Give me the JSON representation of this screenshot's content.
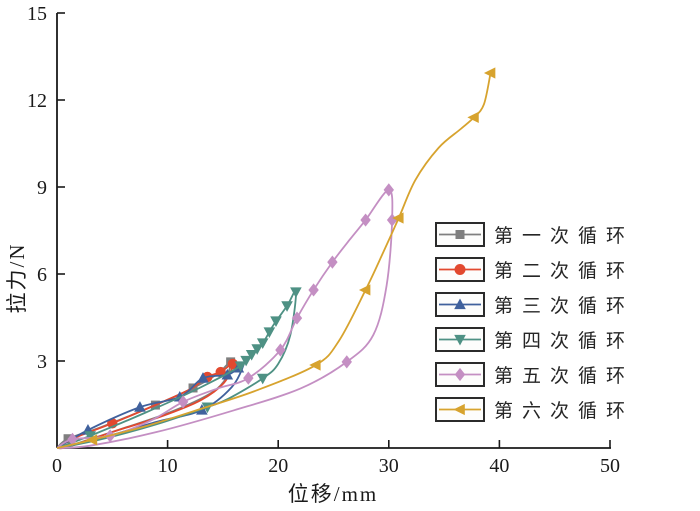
{
  "figure": {
    "background": "#ffffff",
    "text_color": "#1a1a1a"
  },
  "chart_data": {
    "type": "line",
    "title": "",
    "xlabel": "位移/mm",
    "ylabel": "拉力/N",
    "xlim": [
      0,
      50
    ],
    "ylim": [
      0,
      15
    ],
    "xticks": [
      0,
      10,
      20,
      30,
      40,
      50
    ],
    "yticks": [
      3,
      6,
      9,
      12,
      15
    ],
    "grid": false,
    "legend_position": "right-middle",
    "series": [
      {
        "name": "第一次循环",
        "color": "#7f7f7f",
        "marker": "square",
        "points": [
          [
            0,
            0
          ],
          [
            1,
            0.32
          ],
          [
            4,
            0.72
          ],
          [
            8.9,
            1.48
          ],
          [
            12.3,
            2.07
          ],
          [
            14.5,
            2.55
          ],
          [
            15.7,
            2.97
          ],
          [
            15.1,
            2.3
          ],
          [
            13.5,
            1.8
          ],
          [
            10,
            1.2
          ],
          [
            6,
            0.68
          ],
          [
            2,
            0.18
          ],
          [
            0.2,
            0
          ]
        ],
        "marker_points": [
          [
            1,
            0.32
          ],
          [
            8.9,
            1.48
          ],
          [
            12.3,
            2.07
          ],
          [
            15.7,
            2.97
          ]
        ]
      },
      {
        "name": "第二次循环",
        "color": "#e2492f",
        "marker": "circle",
        "points": [
          [
            0,
            0
          ],
          [
            1.8,
            0.38
          ],
          [
            5,
            0.85
          ],
          [
            9,
            1.5
          ],
          [
            12,
            2.02
          ],
          [
            13.6,
            2.45
          ],
          [
            14.8,
            2.62
          ],
          [
            15.9,
            2.9
          ],
          [
            15.1,
            2.25
          ],
          [
            13,
            1.65
          ],
          [
            9.5,
            1.1
          ],
          [
            5,
            0.55
          ],
          [
            1,
            0.04
          ],
          [
            0,
            0
          ]
        ],
        "marker_points": [
          [
            5,
            0.85
          ],
          [
            13.6,
            2.45
          ],
          [
            14.8,
            2.62
          ],
          [
            15.9,
            2.9
          ]
        ]
      },
      {
        "name": "第三次循环",
        "color": "#40619d",
        "marker": "triangle-up",
        "points": [
          [
            0,
            0
          ],
          [
            2.8,
            0.62
          ],
          [
            7.5,
            1.41
          ],
          [
            11.1,
            1.76
          ],
          [
            13.2,
            2.41
          ],
          [
            15.4,
            2.52
          ],
          [
            16.4,
            2.76
          ],
          [
            16.9,
            2.9
          ],
          [
            15.8,
            2.1
          ],
          [
            13.1,
            1.31
          ],
          [
            9,
            0.9
          ],
          [
            4.5,
            0.4
          ],
          [
            0.3,
            0
          ]
        ],
        "marker_points": [
          [
            2.8,
            0.62
          ],
          [
            7.5,
            1.41
          ],
          [
            11.1,
            1.76
          ],
          [
            13.2,
            2.41
          ],
          [
            15.4,
            2.52
          ],
          [
            16.4,
            2.76
          ],
          [
            13.1,
            1.31
          ]
        ]
      },
      {
        "name": "第四次循环",
        "color": "#4e9184",
        "marker": "triangle-down",
        "points": [
          [
            0,
            0
          ],
          [
            3,
            0.42
          ],
          [
            8,
            1.22
          ],
          [
            12.5,
            2.0
          ],
          [
            16.6,
            2.83
          ],
          [
            17.5,
            3.2
          ],
          [
            18.6,
            3.62
          ],
          [
            19.5,
            4.2
          ],
          [
            20.8,
            4.9
          ],
          [
            21.6,
            5.38
          ],
          [
            21.1,
            3.9
          ],
          [
            20,
            2.9
          ],
          [
            18.6,
            2.4
          ],
          [
            15.5,
            1.7
          ],
          [
            13.6,
            1.41
          ],
          [
            9,
            0.82
          ],
          [
            4,
            0.3
          ],
          [
            0.2,
            0
          ]
        ],
        "marker_points": [
          [
            3,
            0.42
          ],
          [
            16.6,
            2.83
          ],
          [
            17.1,
            3.02
          ],
          [
            17.6,
            3.22
          ],
          [
            18.1,
            3.42
          ],
          [
            18.6,
            3.62
          ],
          [
            19.2,
            4.0
          ],
          [
            19.8,
            4.38
          ],
          [
            20.8,
            4.9
          ],
          [
            21.6,
            5.38
          ],
          [
            18.6,
            2.4
          ],
          [
            13.6,
            1.41
          ]
        ]
      },
      {
        "name": "第五次循环",
        "color": "#c48fc3",
        "marker": "diamond",
        "points": [
          [
            0,
            0
          ],
          [
            1.4,
            0.3
          ],
          [
            4.8,
            0.42
          ],
          [
            8.5,
            0.95
          ],
          [
            11.4,
            1.59
          ],
          [
            14.5,
            2.05
          ],
          [
            17.3,
            2.41
          ],
          [
            20.2,
            3.38
          ],
          [
            21.7,
            4.48
          ],
          [
            23.2,
            5.45
          ],
          [
            24.9,
            6.41
          ],
          [
            26.5,
            7.2
          ],
          [
            27.9,
            7.86
          ],
          [
            30.0,
            8.9
          ],
          [
            30.3,
            7.86
          ],
          [
            29.8,
            5.6
          ],
          [
            28.6,
            3.9
          ],
          [
            26.2,
            2.97
          ],
          [
            22,
            2.05
          ],
          [
            16,
            1.3
          ],
          [
            9,
            0.55
          ],
          [
            3,
            0.08
          ],
          [
            0,
            0
          ]
        ],
        "marker_points": [
          [
            1.4,
            0.3
          ],
          [
            4.8,
            0.42
          ],
          [
            11.4,
            1.59
          ],
          [
            17.3,
            2.41
          ],
          [
            20.2,
            3.38
          ],
          [
            21.7,
            4.48
          ],
          [
            23.2,
            5.45
          ],
          [
            24.9,
            6.41
          ],
          [
            27.9,
            7.86
          ],
          [
            30.0,
            8.9
          ],
          [
            30.3,
            7.86
          ],
          [
            26.2,
            2.97
          ]
        ]
      },
      {
        "name": "第六次循环",
        "color": "#d7a32e",
        "marker": "triangle-left",
        "points": [
          [
            0,
            0
          ],
          [
            3.2,
            0.28
          ],
          [
            8,
            0.75
          ],
          [
            13,
            1.35
          ],
          [
            18,
            1.98
          ],
          [
            23.4,
            2.86
          ],
          [
            25.5,
            3.7
          ],
          [
            27.9,
            5.45
          ],
          [
            29.5,
            6.75
          ],
          [
            30.9,
            7.93
          ],
          [
            32.4,
            9.24
          ],
          [
            34.5,
            10.35
          ],
          [
            36.5,
            11.0
          ],
          [
            37.7,
            11.4
          ],
          [
            38.6,
            11.85
          ],
          [
            39.2,
            12.93
          ]
        ],
        "marker_points": [
          [
            3.2,
            0.28
          ],
          [
            23.4,
            2.86
          ],
          [
            27.9,
            5.45
          ],
          [
            30.9,
            7.93
          ],
          [
            37.7,
            11.4
          ],
          [
            39.2,
            12.93
          ]
        ]
      }
    ]
  }
}
